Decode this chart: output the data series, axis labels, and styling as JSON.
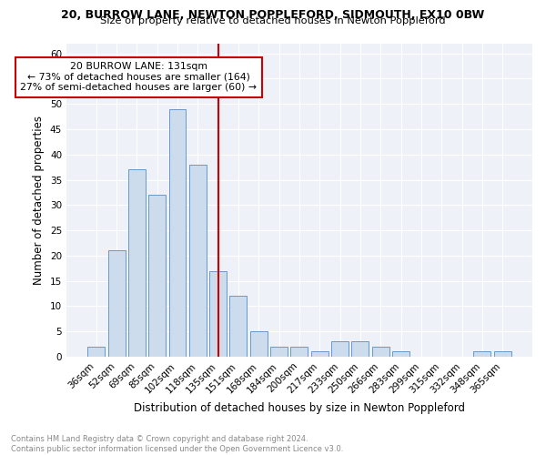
{
  "title": "20, BURROW LANE, NEWTON POPPLEFORD, SIDMOUTH, EX10 0BW",
  "subtitle": "Size of property relative to detached houses in Newton Poppleford",
  "xlabel": "Distribution of detached houses by size in Newton Poppleford",
  "ylabel": "Number of detached properties",
  "bar_color": "#ccdcec",
  "bar_edge_color": "#6699cc",
  "vline_color": "#cc0000",
  "categories": [
    "36sqm",
    "52sqm",
    "69sqm",
    "85sqm",
    "102sqm",
    "118sqm",
    "135sqm",
    "151sqm",
    "168sqm",
    "184sqm",
    "200sqm",
    "217sqm",
    "233sqm",
    "250sqm",
    "266sqm",
    "283sqm",
    "299sqm",
    "315sqm",
    "332sqm",
    "348sqm",
    "365sqm"
  ],
  "values": [
    2,
    21,
    37,
    32,
    49,
    38,
    17,
    12,
    5,
    2,
    2,
    1,
    3,
    3,
    2,
    1,
    0,
    0,
    0,
    1,
    1
  ],
  "ylim": [
    0,
    62
  ],
  "yticks": [
    0,
    5,
    10,
    15,
    20,
    25,
    30,
    35,
    40,
    45,
    50,
    55,
    60
  ],
  "annotation_title": "20 BURROW LANE: 131sqm",
  "annotation_line1": "← 73% of detached houses are smaller (164)",
  "annotation_line2": "27% of semi-detached houses are larger (60) →",
  "footer": "Contains HM Land Registry data © Crown copyright and database right 2024.\nContains public sector information licensed under the Open Government Licence v3.0.",
  "background_color": "#eef2f8",
  "grid_color": "white",
  "vline_index": 6
}
